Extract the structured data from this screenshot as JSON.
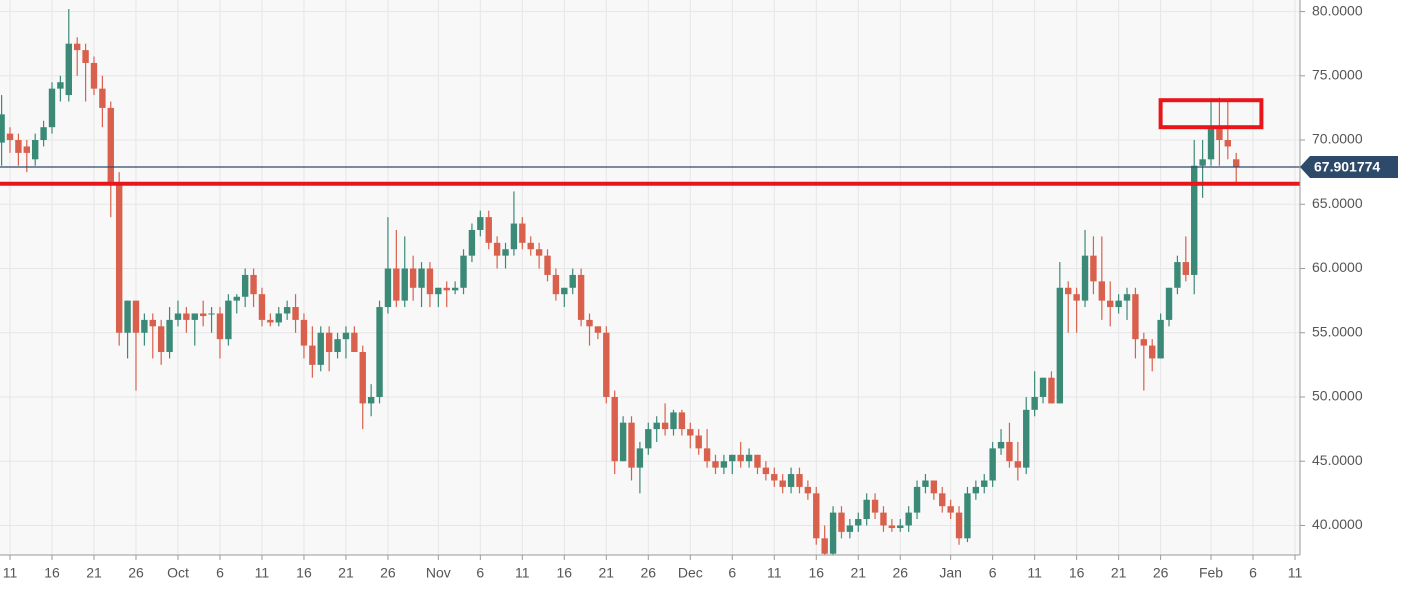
{
  "chart_data": {
    "type": "candlestick",
    "up_color": "#3b8a77",
    "down_color": "#d9604c",
    "grid": true,
    "x": [
      "09-10",
      "09-11",
      "09-12",
      "09-13",
      "09-14",
      "09-15",
      "09-16",
      "09-17",
      "09-18",
      "09-19",
      "09-20",
      "09-21",
      "09-22",
      "09-23",
      "09-24",
      "09-25",
      "09-26",
      "09-27",
      "09-28",
      "09-29",
      "09-30",
      "10-01",
      "10-02",
      "10-03",
      "10-04",
      "10-05",
      "10-06",
      "10-07",
      "10-08",
      "10-09",
      "10-10",
      "10-11",
      "10-12",
      "10-13",
      "10-14",
      "10-15",
      "10-16",
      "10-17",
      "10-18",
      "10-19",
      "10-20",
      "10-21",
      "10-22",
      "10-23",
      "10-24",
      "10-25",
      "10-26",
      "10-27",
      "10-28",
      "10-29",
      "10-30",
      "10-31",
      "11-01",
      "11-02",
      "11-03",
      "11-04",
      "11-05",
      "11-06",
      "11-07",
      "11-08",
      "11-09",
      "11-10",
      "11-11",
      "11-12",
      "11-13",
      "11-14",
      "11-15",
      "11-16",
      "11-17",
      "11-18",
      "11-19",
      "11-20",
      "11-21",
      "11-22",
      "11-23",
      "11-24",
      "11-25",
      "11-26",
      "11-27",
      "11-28",
      "11-29",
      "11-30",
      "12-01",
      "12-02",
      "12-03",
      "12-04",
      "12-05",
      "12-06",
      "12-07",
      "12-08",
      "12-09",
      "12-10",
      "12-11",
      "12-12",
      "12-13",
      "12-14",
      "12-15",
      "12-16",
      "12-17",
      "12-18",
      "12-19",
      "12-20",
      "12-21",
      "12-22",
      "12-23",
      "12-24",
      "12-25",
      "12-26",
      "12-27",
      "12-28",
      "12-29",
      "12-30",
      "12-31",
      "01-01",
      "01-02",
      "01-03",
      "01-04",
      "01-05",
      "01-06",
      "01-07",
      "01-08",
      "01-09",
      "01-10",
      "01-11",
      "01-12",
      "01-13",
      "01-14",
      "01-15",
      "01-16",
      "01-17",
      "01-18",
      "01-19",
      "01-20",
      "01-21",
      "01-22",
      "01-23",
      "01-24",
      "01-25",
      "01-26",
      "01-27",
      "01-28",
      "01-29",
      "01-30",
      "01-31",
      "02-01",
      "02-02",
      "02-03",
      "02-04"
    ],
    "open": [
      69.8,
      70.5,
      70,
      69.5,
      68.5,
      70,
      71,
      74,
      73.5,
      77.5,
      77,
      76,
      74,
      72.5,
      66.5,
      55,
      57.5,
      55,
      56,
      55.5,
      53.5,
      56,
      56.5,
      56,
      56.5,
      56.5,
      56.5,
      54.5,
      57.5,
      57.8,
      59.5,
      58,
      56,
      55.8,
      56.5,
      57,
      56,
      54,
      52.5,
      55,
      53.5,
      54.5,
      55,
      53.5,
      49.5,
      50,
      57,
      60,
      57.5,
      60,
      58.5,
      60,
      58,
      58.5,
      58.3,
      58.5,
      61,
      63,
      64,
      62,
      61,
      61.5,
      63.5,
      62,
      61.5,
      61,
      59.5,
      58,
      58.5,
      59.5,
      56,
      55.5,
      55,
      50,
      45,
      48,
      44.5,
      46,
      47.5,
      48,
      47.5,
      48.8,
      47.5,
      47,
      46,
      45,
      44.5,
      45,
      45.5,
      45,
      45.5,
      44.5,
      44,
      43.5,
      43,
      44,
      43,
      42.5,
      39,
      37.8,
      41,
      39.5,
      40,
      40.5,
      42,
      41,
      40,
      39.8,
      40,
      41,
      43,
      43.5,
      42.5,
      41.5,
      41,
      39,
      42.5,
      43,
      43.5,
      46,
      46.5,
      45,
      44.5,
      49,
      50,
      51.5,
      49.5,
      58.5,
      58,
      57.5,
      61,
      59,
      57.5,
      57,
      57.5,
      58,
      54.5,
      54,
      53,
      56,
      58.5,
      60.5,
      59.5,
      68,
      68.5,
      71,
      70,
      68.5
    ],
    "high": [
      73.5,
      71,
      70.5,
      70,
      70.5,
      71.5,
      74.5,
      75,
      80.2,
      78,
      77.5,
      76.5,
      75,
      73,
      67.5,
      57.5,
      57.5,
      56.5,
      56.5,
      56,
      57,
      57.5,
      57,
      56.5,
      57.5,
      57,
      57,
      58,
      58,
      60,
      60,
      58.5,
      56.5,
      57,
      57.5,
      58,
      56.5,
      55.5,
      55.5,
      55.5,
      55,
      55.5,
      55.5,
      54,
      51,
      57.5,
      64,
      63,
      62.5,
      61,
      60.5,
      60.5,
      58.5,
      59,
      59,
      61.5,
      63.5,
      64.5,
      64.5,
      62.5,
      62,
      66,
      64,
      62.5,
      62,
      61.5,
      60,
      58.5,
      60,
      60,
      56.5,
      55.5,
      55.5,
      50.5,
      48.5,
      48.5,
      46.5,
      48,
      48.5,
      49.5,
      49,
      49,
      48,
      47.5,
      47.5,
      45.5,
      45.5,
      45.5,
      46.5,
      46,
      45.5,
      45,
      44.5,
      44,
      44.5,
      44.5,
      43.5,
      43,
      40,
      41.5,
      41.5,
      40.5,
      41,
      42.5,
      42.5,
      41.5,
      40.5,
      40.5,
      41.5,
      43.5,
      44,
      43.5,
      43,
      42,
      41.5,
      43,
      43.5,
      44,
      46.5,
      47.5,
      48,
      46.5,
      50,
      52,
      51.5,
      52,
      60.5,
      59,
      58.5,
      63,
      62.5,
      62.5,
      59,
      58,
      58.5,
      58.5,
      55,
      54.5,
      56.5,
      58.5,
      61,
      62.5,
      70,
      70,
      73,
      73.3,
      73,
      69
    ],
    "low": [
      68,
      69,
      68,
      67.5,
      68,
      69.5,
      70.5,
      73,
      73,
      75,
      73,
      73.5,
      71,
      64,
      54,
      53,
      50.5,
      54,
      53,
      52.5,
      53,
      55.5,
      55,
      54,
      55.5,
      55,
      53,
      54,
      56.5,
      57,
      57,
      55.5,
      55.5,
      55.5,
      56,
      55,
      53,
      51.5,
      52,
      52,
      53,
      53,
      53.5,
      47.5,
      48.5,
      49.5,
      56.5,
      57,
      57,
      57.5,
      57,
      57,
      57,
      57,
      58,
      58,
      60.5,
      62.5,
      61.5,
      60,
      60,
      61,
      61.5,
      61,
      60,
      59,
      57.5,
      57,
      58,
      55.5,
      54,
      54.5,
      49.5,
      44,
      45,
      43.5,
      42.5,
      45.5,
      46.5,
      47,
      47,
      47,
      46,
      45.5,
      44.5,
      44,
      44,
      44,
      44.5,
      44.5,
      44,
      43.5,
      43,
      42.5,
      42.5,
      42.5,
      42,
      38.5,
      37.7,
      37.7,
      39,
      39,
      39.5,
      40,
      40.5,
      39.5,
      39.5,
      39.5,
      39.5,
      40.5,
      42.5,
      42,
      41,
      40.5,
      38.5,
      38.7,
      42,
      42.5,
      43,
      45.5,
      44.5,
      43.5,
      44,
      48.5,
      49.5,
      49.5,
      49.5,
      55,
      55,
      57,
      58,
      56,
      55.5,
      56.5,
      56,
      53,
      50.5,
      52,
      53,
      55.5,
      58,
      59,
      58,
      65.5,
      68,
      68,
      68.5,
      66.5
    ],
    "close": [
      72,
      70,
      69,
      69,
      70,
      71,
      74,
      74.5,
      77.5,
      77,
      76,
      74,
      72.5,
      66.5,
      55,
      57.5,
      55,
      56,
      55.5,
      53.5,
      56,
      56.5,
      56,
      56.5,
      56.3,
      56.5,
      54.5,
      57.5,
      57.8,
      59.5,
      58,
      56,
      55.8,
      56.5,
      57,
      56,
      54,
      52.5,
      55,
      53.5,
      54.5,
      55,
      53.5,
      49.5,
      50,
      57,
      60,
      57.5,
      60,
      58.5,
      60,
      58,
      58.5,
      58.3,
      58.5,
      61,
      63,
      64,
      62,
      61,
      61.5,
      63.5,
      62,
      61.5,
      61,
      59.5,
      58,
      58.5,
      59.5,
      56,
      55.5,
      55,
      50,
      45,
      48,
      44.5,
      46,
      47.5,
      48,
      47.5,
      48.8,
      47.5,
      47,
      46,
      45,
      44.5,
      45,
      45.5,
      45,
      45.5,
      44.5,
      44,
      43.5,
      43,
      44,
      43,
      42.5,
      39,
      37.8,
      41,
      39.5,
      40,
      40.5,
      42,
      41,
      40,
      39.8,
      40,
      41,
      43,
      43.5,
      42.5,
      41.5,
      41,
      39,
      42.5,
      43,
      43.5,
      46,
      46.5,
      45,
      44.5,
      49,
      50,
      51.5,
      49.5,
      58.5,
      58,
      57.5,
      61,
      59,
      57.5,
      57,
      57.5,
      58,
      54.5,
      54,
      53,
      56,
      58.5,
      60.5,
      59.5,
      68,
      68.5,
      71,
      70,
      69.5,
      67.9
    ],
    "xlim": [
      "09-10",
      "02-11"
    ],
    "xticks": [
      {
        "value": "09-11",
        "label": "11"
      },
      {
        "value": "09-16",
        "label": "16"
      },
      {
        "value": "09-21",
        "label": "21"
      },
      {
        "value": "09-26",
        "label": "26"
      },
      {
        "value": "10-01",
        "label": "Oct"
      },
      {
        "value": "10-06",
        "label": "6"
      },
      {
        "value": "10-11",
        "label": "11"
      },
      {
        "value": "10-16",
        "label": "16"
      },
      {
        "value": "10-21",
        "label": "21"
      },
      {
        "value": "10-26",
        "label": "26"
      },
      {
        "value": "11-01",
        "label": "Nov"
      },
      {
        "value": "11-06",
        "label": "6"
      },
      {
        "value": "11-11",
        "label": "11"
      },
      {
        "value": "11-16",
        "label": "16"
      },
      {
        "value": "11-21",
        "label": "21"
      },
      {
        "value": "11-26",
        "label": "26"
      },
      {
        "value": "12-01",
        "label": "Dec"
      },
      {
        "value": "12-06",
        "label": "6"
      },
      {
        "value": "12-11",
        "label": "11"
      },
      {
        "value": "12-16",
        "label": "16"
      },
      {
        "value": "12-21",
        "label": "21"
      },
      {
        "value": "12-26",
        "label": "26"
      },
      {
        "value": "01-01",
        "label": "Jan"
      },
      {
        "value": "01-06",
        "label": "6"
      },
      {
        "value": "01-11",
        "label": "11"
      },
      {
        "value": "01-16",
        "label": "16"
      },
      {
        "value": "01-21",
        "label": "21"
      },
      {
        "value": "01-26",
        "label": "26"
      },
      {
        "value": "02-01",
        "label": "Feb"
      },
      {
        "value": "02-06",
        "label": "6"
      },
      {
        "value": "02-11",
        "label": "11"
      }
    ],
    "ylim": [
      37.7,
      80.9
    ],
    "yticks": [
      {
        "value": 40,
        "label": "40.0000"
      },
      {
        "value": 45,
        "label": "45.0000"
      },
      {
        "value": 50,
        "label": "50.0000"
      },
      {
        "value": 55,
        "label": "55.0000"
      },
      {
        "value": 60,
        "label": "60.0000"
      },
      {
        "value": 65,
        "label": "65.0000"
      },
      {
        "value": 70,
        "label": "70.0000"
      },
      {
        "value": 75,
        "label": "75.0000"
      },
      {
        "value": 80,
        "label": "80.0000"
      }
    ],
    "last_price": 67.901774,
    "last_price_color": "#2e4a6b",
    "hline": {
      "value": 66.6,
      "color": "#e8151b"
    },
    "box": {
      "x": [
        "01-26",
        "02-07"
      ],
      "y": [
        71.0,
        73.1
      ],
      "color": "#e8151b"
    }
  }
}
